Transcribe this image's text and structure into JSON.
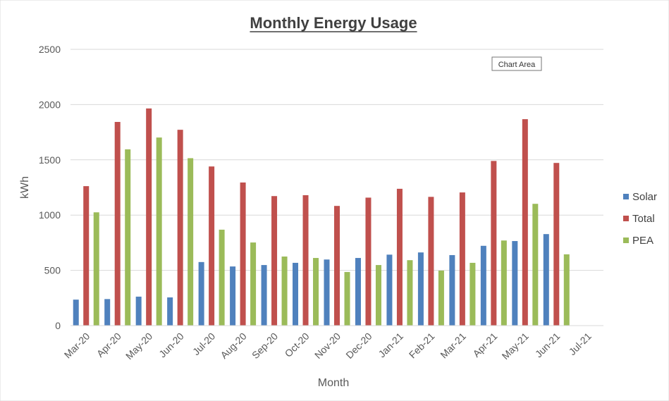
{
  "chart_data": {
    "type": "bar",
    "title": "Monthly Energy Usage",
    "xlabel": "Month",
    "ylabel": "kWh",
    "ylim": [
      0,
      2500
    ],
    "yticks": [
      0,
      500,
      1000,
      1500,
      2000,
      2500
    ],
    "grid": true,
    "legend_position": "right",
    "categories": [
      "Mar-20",
      "Apr-20",
      "May-20",
      "Jun-20",
      "Jul-20",
      "Aug-20",
      "Sep-20",
      "Oct-20",
      "Nov-20",
      "Dec-20",
      "Jan-21",
      "Feb-21",
      "Mar-21",
      "Apr-21",
      "May-21",
      "Jun-21",
      "Jul-21"
    ],
    "series": [
      {
        "name": "Solar",
        "color": "#4f81bd",
        "values": [
          235,
          240,
          262,
          255,
          575,
          535,
          548,
          568,
          598,
          612,
          642,
          662,
          638,
          722,
          765,
          828,
          null
        ]
      },
      {
        "name": "Total",
        "color": "#c0504d",
        "values": [
          1262,
          1843,
          1965,
          1772,
          1440,
          1295,
          1172,
          1180,
          1083,
          1158,
          1238,
          1165,
          1205,
          1490,
          1868,
          1472,
          null
        ]
      },
      {
        "name": "PEA",
        "color": "#9bbb59",
        "values": [
          1025,
          1595,
          1702,
          1515,
          868,
          752,
          625,
          612,
          485,
          548,
          592,
          498,
          568,
          770,
          1102,
          645,
          null
        ]
      }
    ]
  },
  "tooltip": {
    "label": "Chart Area"
  }
}
